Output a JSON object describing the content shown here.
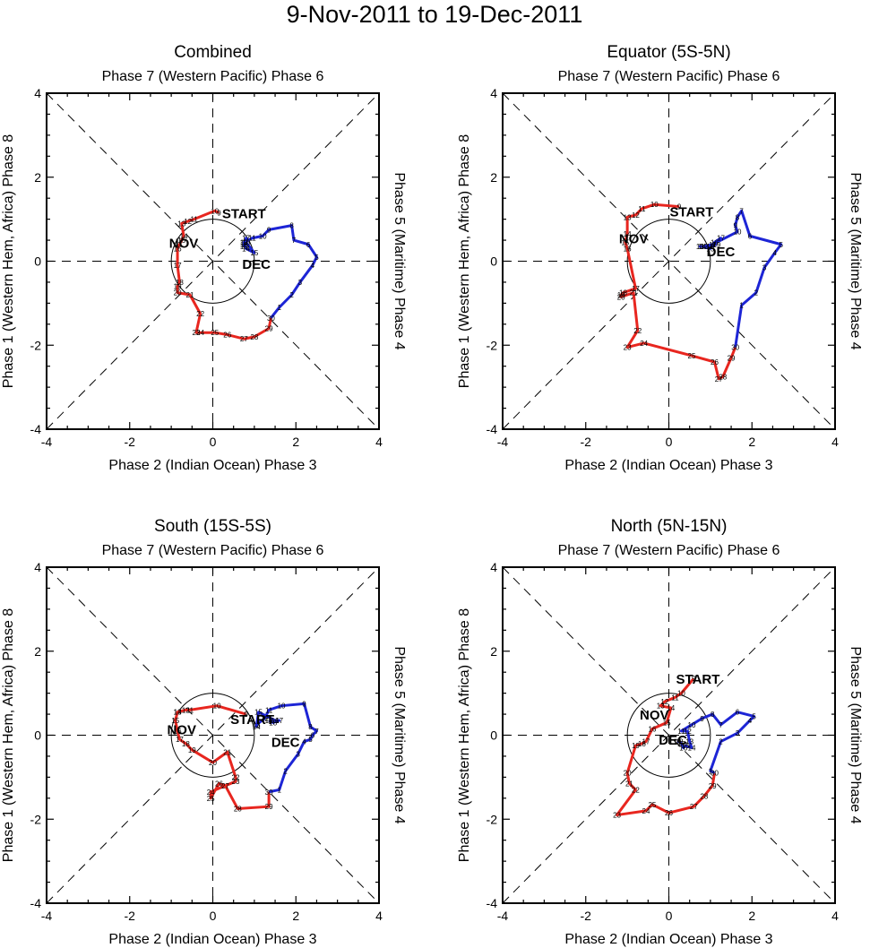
{
  "title": "9-Nov-2011 to 19-Dec-2011",
  "colors": {
    "nov": "#e8261f",
    "dec": "#1d25d6",
    "axes": "#000000"
  },
  "chart_data": [
    {
      "type": "line",
      "title": "Combined",
      "top_label": "Phase 7 (Western Pacific) Phase 6",
      "bottom_label": "Phase 2 (Indian Ocean) Phase 3",
      "left_label": "Phase 1 (Western Hem, Africa) Phase 8",
      "right_label": "Phase 5 (Maritime) Phase 4",
      "xlim": [
        -4,
        4
      ],
      "ylim": [
        -4,
        4
      ],
      "ticks": [
        "-4",
        "-2",
        "0",
        "2",
        "4"
      ],
      "start_label": "START",
      "start_pos": [
        0.75,
        1.15
      ],
      "month_labels": [
        {
          "text": "NOV",
          "pos": [
            -0.7,
            0.45
          ],
          "series": "nov"
        },
        {
          "text": "DEC",
          "pos": [
            1.05,
            -0.05
          ],
          "series": "dec"
        }
      ],
      "series": [
        {
          "name": "Nov",
          "color": "nov",
          "days": [
            9,
            10,
            11,
            12,
            13,
            14,
            15,
            16,
            17,
            18,
            19,
            20,
            21,
            22,
            23,
            24,
            25,
            26,
            27,
            28,
            29,
            30
          ],
          "x": [
            0.15,
            0.05,
            -0.45,
            -0.6,
            -0.75,
            -0.7,
            -0.75,
            -0.85,
            -0.85,
            -0.8,
            -0.85,
            -0.85,
            -0.55,
            -0.3,
            -0.4,
            -0.3,
            0.05,
            0.35,
            0.75,
            1.0,
            1.35,
            1.4
          ],
          "y": [
            1.15,
            1.2,
            1.0,
            0.95,
            0.9,
            0.6,
            0.5,
            0.3,
            -0.1,
            -0.5,
            -0.6,
            -0.75,
            -0.8,
            -1.25,
            -1.7,
            -1.7,
            -1.7,
            -1.75,
            -1.85,
            -1.8,
            -1.6,
            -1.35
          ]
        },
        {
          "name": "Dec",
          "color": "dec",
          "days": [
            1,
            2,
            3,
            4,
            5,
            6,
            7,
            8,
            9,
            10,
            11,
            12,
            13,
            14,
            15,
            16,
            17,
            18,
            19
          ],
          "x": [
            1.6,
            1.9,
            2.1,
            2.4,
            2.5,
            2.3,
            1.95,
            1.9,
            1.35,
            1.2,
            0.95,
            0.75,
            0.75,
            0.8,
            1.0,
            0.8,
            0.8,
            0.75,
            0.75
          ],
          "y": [
            -1.1,
            -0.8,
            -0.5,
            -0.1,
            0.1,
            0.4,
            0.5,
            0.85,
            0.75,
            0.6,
            0.55,
            0.45,
            0.45,
            0.3,
            0.2,
            0.45,
            0.55,
            0.4,
            0.35
          ]
        }
      ]
    },
    {
      "type": "line",
      "title": "Equator (5S-5N)",
      "top_label": "Phase 7 (Western Pacific) Phase 6",
      "bottom_label": "Phase 2 (Indian Ocean) Phase 3",
      "left_label": "Phase 1 (Western Hem, Africa) Phase 8",
      "right_label": "Phase 5 (Maritime) Phase 4",
      "xlim": [
        -4,
        4
      ],
      "ylim": [
        -4,
        4
      ],
      "ticks": [
        "-4",
        "-2",
        "0",
        "2",
        "4"
      ],
      "start_label": "START",
      "start_pos": [
        0.55,
        1.2
      ],
      "month_labels": [
        {
          "text": "NOV",
          "pos": [
            -0.85,
            0.55
          ],
          "series": "nov"
        },
        {
          "text": "DEC",
          "pos": [
            1.25,
            0.25
          ],
          "series": "dec"
        }
      ],
      "series": [
        {
          "name": "Nov",
          "color": "nov",
          "days": [
            9,
            10,
            11,
            12,
            13,
            14,
            15,
            16,
            17,
            18,
            19,
            20,
            21,
            22,
            23,
            24,
            25,
            26,
            27,
            28,
            29,
            30
          ],
          "x": [
            0.25,
            -0.35,
            -0.65,
            -0.8,
            -1.0,
            -1.0,
            -1.05,
            -1.0,
            -0.8,
            -1.1,
            -1.15,
            -1.15,
            -0.85,
            -0.75,
            -1.0,
            -0.6,
            0.55,
            1.1,
            1.2,
            1.3,
            1.5,
            1.6
          ],
          "y": [
            1.3,
            1.35,
            1.25,
            1.1,
            1.05,
            0.65,
            0.45,
            0.3,
            -0.65,
            -0.75,
            -0.8,
            -0.85,
            -0.75,
            -1.65,
            -2.05,
            -1.95,
            -2.25,
            -2.4,
            -2.8,
            -2.75,
            -2.3,
            -2.05
          ]
        },
        {
          "name": "Dec",
          "color": "dec",
          "days": [
            1,
            2,
            3,
            4,
            5,
            6,
            7,
            8,
            9,
            10,
            11,
            12,
            13,
            14,
            15,
            16,
            17,
            18,
            19
          ],
          "x": [
            1.75,
            2.1,
            2.3,
            2.55,
            2.7,
            1.95,
            1.75,
            1.65,
            1.6,
            1.65,
            1.05,
            0.85,
            0.75,
            0.8,
            1.0,
            1.1,
            1.25,
            1.0,
            1.15
          ],
          "y": [
            -1.05,
            -0.75,
            -0.15,
            0.2,
            0.4,
            0.6,
            1.2,
            1.05,
            0.85,
            0.7,
            0.4,
            0.35,
            0.35,
            0.35,
            0.3,
            0.45,
            0.55,
            0.35,
            0.4
          ]
        }
      ]
    },
    {
      "type": "line",
      "title": "South (15S-5S)",
      "top_label": "Phase 7 (Western Pacific) Phase 6",
      "bottom_label": "Phase 2 (Indian Ocean) Phase 3",
      "left_label": "Phase 1 (Western Hem, Africa) Phase 8",
      "right_label": "Phase 5 (Maritime) Phase 4",
      "xlim": [
        -4,
        4
      ],
      "ylim": [
        -4,
        4
      ],
      "ticks": [
        "-4",
        "-2",
        "0",
        "2",
        "4"
      ],
      "start_label": "START",
      "start_pos": [
        0.95,
        0.4
      ],
      "month_labels": [
        {
          "text": "NOV",
          "pos": [
            -0.75,
            0.15
          ],
          "series": "nov"
        },
        {
          "text": "DEC",
          "pos": [
            1.75,
            -0.15
          ],
          "series": "dec"
        }
      ],
      "series": [
        {
          "name": "Nov",
          "color": "nov",
          "days": [
            9,
            10,
            11,
            12,
            13,
            14,
            15,
            16,
            17,
            18,
            19,
            20,
            21,
            22,
            23,
            24,
            25,
            26,
            27,
            28,
            29,
            30
          ],
          "x": [
            0.8,
            0.1,
            -0.55,
            -0.65,
            -0.85,
            -0.85,
            -0.9,
            -0.85,
            -0.8,
            -0.65,
            -0.5,
            0.0,
            0.35,
            0.55,
            0.55,
            -0.05,
            -0.05,
            0.15,
            0.3,
            0.6,
            1.35,
            1.35
          ],
          "y": [
            0.5,
            0.7,
            0.6,
            0.6,
            0.55,
            0.55,
            0.35,
            0.1,
            -0.1,
            -0.2,
            -0.35,
            -0.65,
            -0.4,
            -1.0,
            -1.1,
            -1.35,
            -1.5,
            -1.15,
            -1.2,
            -1.75,
            -1.7,
            -1.35
          ]
        },
        {
          "name": "Dec",
          "color": "dec",
          "days": [
            1,
            2,
            3,
            4,
            5,
            6,
            7,
            8,
            9,
            10,
            11,
            12,
            13,
            14,
            15,
            16,
            17,
            18,
            19
          ],
          "x": [
            1.6,
            1.75,
            2.05,
            2.2,
            2.35,
            2.4,
            2.5,
            2.35,
            2.2,
            1.65,
            1.35,
            1.25,
            1.05,
            1.05,
            1.1,
            1.5,
            1.6,
            1.45,
            1.35
          ],
          "y": [
            -1.3,
            -0.85,
            -0.45,
            -0.15,
            -0.1,
            0.0,
            0.1,
            0.2,
            0.75,
            0.7,
            0.6,
            0.4,
            0.25,
            0.2,
            0.55,
            0.35,
            0.35,
            0.3,
            0.35
          ]
        }
      ]
    },
    {
      "type": "line",
      "title": "North (5N-15N)",
      "top_label": "Phase 7 (Western Pacific) Phase 6",
      "bottom_label": "Phase 2 (Indian Ocean) Phase 3",
      "left_label": "Phase 1 (Western Hem, Africa) Phase 8",
      "right_label": "Phase 5 (Maritime) Phase 4",
      "xlim": [
        -4,
        4
      ],
      "ylim": [
        -4,
        4
      ],
      "ticks": [
        "-4",
        "-2",
        "0",
        "2",
        "4"
      ],
      "start_label": "START",
      "start_pos": [
        0.7,
        1.35
      ],
      "month_labels": [
        {
          "text": "NOV",
          "pos": [
            -0.35,
            0.5
          ],
          "series": "nov"
        },
        {
          "text": "DEC",
          "pos": [
            0.1,
            -0.1
          ],
          "series": "dec"
        }
      ],
      "series": [
        {
          "name": "Nov",
          "color": "nov",
          "days": [
            9,
            10,
            11,
            12,
            13,
            14,
            15,
            16,
            17,
            18,
            19,
            20,
            21,
            22,
            23,
            24,
            25,
            26,
            27,
            28,
            29,
            30
          ],
          "x": [
            0.6,
            0.3,
            0.15,
            -0.1,
            -0.2,
            0.05,
            -0.05,
            -0.4,
            -0.55,
            -0.65,
            -0.8,
            -1.0,
            -0.95,
            -0.8,
            -1.25,
            -0.55,
            -0.4,
            0.0,
            0.6,
            0.85,
            1.05,
            1.1
          ],
          "y": [
            1.35,
            1.0,
            0.9,
            0.8,
            0.7,
            0.65,
            0.3,
            0.15,
            -0.15,
            -0.2,
            -0.25,
            -0.9,
            -1.15,
            -1.3,
            -1.9,
            -1.8,
            -1.65,
            -1.85,
            -1.7,
            -1.45,
            -1.2,
            -0.9
          ]
        },
        {
          "name": "Dec",
          "color": "dec",
          "days": [
            1,
            2,
            3,
            4,
            5,
            6,
            7,
            8,
            9,
            10,
            11,
            12,
            13,
            14,
            15,
            16,
            17,
            18,
            19
          ],
          "x": [
            1.0,
            1.25,
            1.65,
            1.95,
            2.05,
            1.65,
            1.25,
            1.05,
            0.8,
            0.55,
            0.3,
            0.45,
            0.5,
            0.55,
            0.4,
            0.35,
            0.3,
            0.25,
            0.2
          ],
          "y": [
            -0.85,
            -0.15,
            0.05,
            0.35,
            0.45,
            0.55,
            0.25,
            0.5,
            0.4,
            0.25,
            0.1,
            0.1,
            -0.15,
            -0.3,
            -0.25,
            -0.3,
            -0.2,
            -0.15,
            -0.15
          ]
        }
      ]
    }
  ]
}
